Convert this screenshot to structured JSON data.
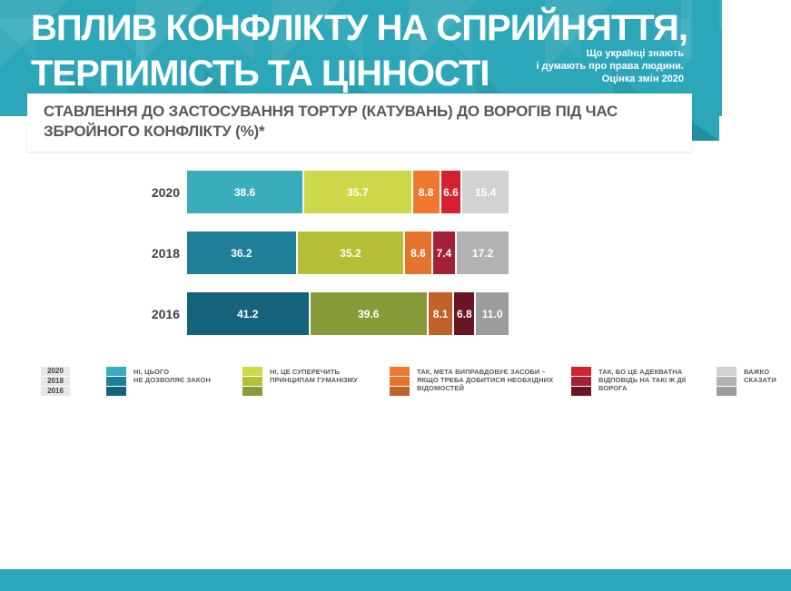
{
  "header": {
    "title_line1": "ВПЛИВ КОНФЛІКТУ НА СПРИЙНЯТТЯ,",
    "title_line2": "ТЕРПИМІСТЬ ТА ЦІННОСТІ",
    "tagline": "Що українці знають\nі думають про права людини.\nОцінка змін 2020",
    "bg_color": "#2ca6b9",
    "fold_color": "#1f8ea1"
  },
  "banner": {
    "subtitle": "СТАВЛЕННЯ ДО ЗАСТОСУВАННЯ ТОРТУР (КАТУВАНЬ) ДО ВОРОГІВ ПІД ЧАС\nЗБРОЙНОГО КОНФЛІКТУ (%)*"
  },
  "chart_data": {
    "type": "bar",
    "orientation": "horizontal",
    "stacked": true,
    "title": "СТАВЛЕННЯ ДО ЗАСТОСУВАННЯ ТОРТУР (КАТУВАНЬ) ДО ВОРОГІВ ПІД ЧАС ЗБРОЙНОГО КОНФЛІКТУ (%)*",
    "categories": [
      "2020",
      "2018",
      "2016"
    ],
    "series": [
      {
        "name": "НІ, ЦЬОГО НЕ ДОЗВОЛЯЄ ЗАКОН",
        "values": [
          38.6,
          36.2,
          41.2
        ],
        "colors": [
          "#39adbc",
          "#1f7e98",
          "#15637b"
        ]
      },
      {
        "name": "НІ, ЦЕ СУПЕРЕЧИТЬ ПРИНЦИПАМ ГУМАНІЗМУ",
        "values": [
          35.7,
          35.2,
          39.6
        ],
        "colors": [
          "#cdd84b",
          "#b5bf37",
          "#879b39"
        ]
      },
      {
        "name": "ТАК, МЕТА ВИПРАВДОВУЄ ЗАСОБИ – ЯКЩО ТРЕБА ДОБИТИСЯ НЕОБХІДНИХ ВІДОМОСТЕЙ",
        "values": [
          8.8,
          8.6,
          8.1
        ],
        "colors": [
          "#f0782e",
          "#e4742c",
          "#c2622b"
        ]
      },
      {
        "name": "ТАК, БО ЦЕ АДЕКВАТНА ВІДПОВІДЬ НА ТАКІ Ж ДІЇ ВОРОГА",
        "values": [
          6.6,
          7.4,
          6.8
        ],
        "colors": [
          "#d6202f",
          "#a32136",
          "#6b1423"
        ]
      },
      {
        "name": "ВАЖКО СКАЗАТИ",
        "values": [
          15.4,
          17.2,
          11.0
        ],
        "colors": [
          "#d2d2d4",
          "#b2b2b5",
          "#9d9da0"
        ]
      }
    ],
    "value_labels": true,
    "legend_position": "bottom",
    "grid": false
  },
  "legend": {
    "years": [
      "2020",
      "2018",
      "2016"
    ],
    "items": [
      {
        "lines": [
          "НІ, ЦЬОГО",
          "НЕ ДОЗВОЛЯЄ ЗАКОН"
        ]
      },
      {
        "lines": [
          "НІ, ЦЕ СУПЕРЕЧИТЬ",
          "ПРИНЦИПАМ ГУМАНІЗМУ"
        ]
      },
      {
        "lines": [
          "ТАК, МЕТА ВИПРАВДОВУЄ ЗАСОБИ –",
          "ЯКЩО ТРЕБА ДОБИТИСЯ НЕОБХІДНИХ",
          "ВІДОМОСТЕЙ"
        ]
      },
      {
        "lines": [
          "ТАК, БО ЦЕ АДЕКВАТНА",
          "ВІДПОВІДЬ НА ТАКІ Ж ДІЇ",
          "ВОРОГА"
        ]
      },
      {
        "lines": [
          "ВАЖКО",
          "СКАЗАТИ"
        ]
      }
    ]
  }
}
